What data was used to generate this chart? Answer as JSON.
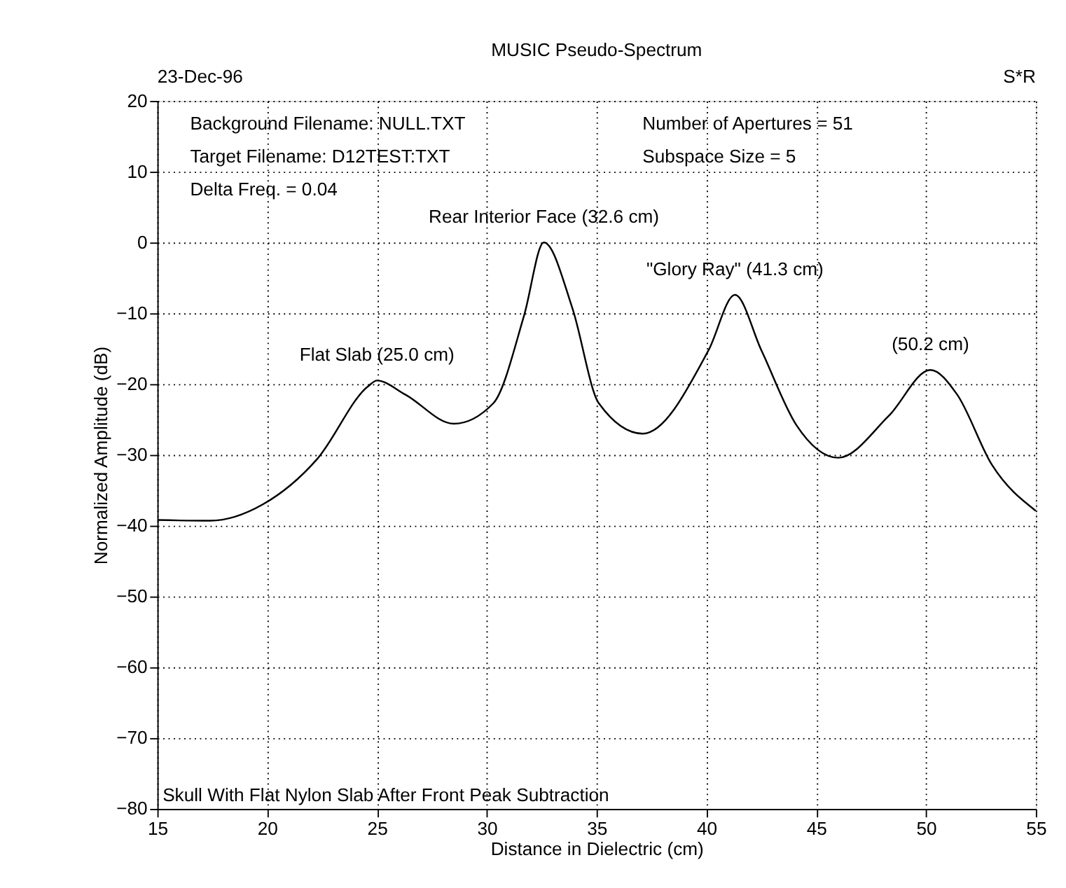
{
  "chart_data": {
    "type": "line",
    "title": "MUSIC Pseudo-Spectrum",
    "xlabel": "Distance in Dielectric (cm)",
    "ylabel": "Normalized Amplitude (dB)",
    "x": [
      15,
      17.4,
      19.8,
      22.3,
      24.6,
      25.0,
      26.3,
      28.5,
      30.3,
      31.7,
      32.6,
      33.9,
      35.1,
      37.1,
      40.1,
      41.3,
      42.5,
      44.1,
      46.0,
      48.3,
      50.2,
      51.4,
      53.0,
      55
    ],
    "series": [
      {
        "color": "#000000",
        "values": [
          -39.2,
          -39.3,
          -37.0,
          -30.5,
          -20.3,
          -19.5,
          -21.5,
          -25.6,
          -22.7,
          -10.3,
          0,
          -9.3,
          -22.7,
          -27,
          -15.2,
          -7.4,
          -15.2,
          -25.8,
          -30.4,
          -24.5,
          -18,
          -21.4,
          -31.4,
          -37.9
        ]
      }
    ],
    "xlim": [
      15,
      55
    ],
    "xticks": [
      15,
      20,
      25,
      30,
      35,
      40,
      45,
      50,
      55
    ],
    "ylim": [
      -80,
      20
    ],
    "yticks": [
      -80,
      -70,
      -60,
      -50,
      -40,
      -30,
      -20,
      -10,
      0,
      10,
      20
    ],
    "grid": true,
    "marker": "none",
    "line_style": "solid",
    "annotations": [
      "23-Dec-96",
      "S*R",
      "Background Filename:  NULL.TXT",
      "Target Filename:  D12TEST:TXT",
      "Delta Freq. = 0.04",
      "Number of Apertures = 51",
      "Subspace Size = 5",
      "Skull With Flat Nylon Slab After Front Peak Subtraction",
      {
        "text": "Flat Slab (25.0 cm)",
        "x": 25.0,
        "y": -19.5
      },
      {
        "text": "Rear Interior Face (32.6 cm)",
        "x": 32.6,
        "y": 0
      },
      {
        "text": "\"Glory Ray\" (41.3 cm)",
        "x": 41.3,
        "y": -7.4
      },
      {
        "text": "(50.2 cm)",
        "x": 50.2,
        "y": -18
      }
    ]
  }
}
